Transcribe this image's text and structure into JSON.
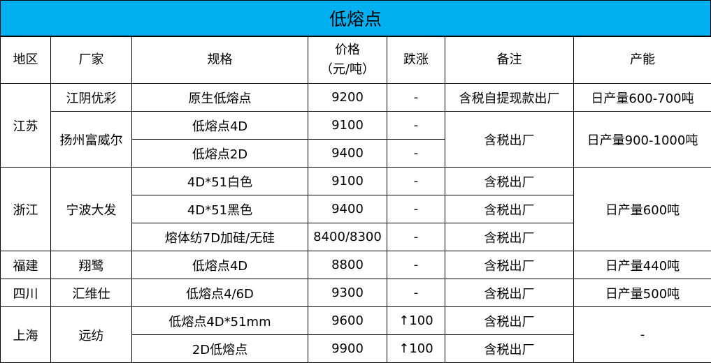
{
  "title": "低熔点",
  "headers": {
    "region": "地区",
    "maker": "厂家",
    "spec": "规格",
    "price_line1": "价格",
    "price_line2": "（元/吨）",
    "change": "跌涨",
    "note": "备注",
    "capacity": "产能"
  },
  "rows": [
    {
      "region": "江苏",
      "maker": "江阴优彩",
      "spec": "原生低熔点",
      "price": "9200",
      "change": "-",
      "note": "含税自提现款出厂",
      "capacity": "日产量600-700吨"
    },
    {
      "maker": "扬州富威尔",
      "spec": "低熔点4D",
      "price": "9100",
      "change": "-",
      "note": "含税出厂",
      "capacity": "日产量900-1000吨"
    },
    {
      "spec": "低熔点2D",
      "price": "9400",
      "change": "-"
    },
    {
      "region": "浙江",
      "maker": "宁波大发",
      "spec": "4D*51白色",
      "price": "9100",
      "change": "-",
      "note": "含税出厂",
      "capacity": "日产量600吨"
    },
    {
      "spec": "4D*51黑色",
      "price": "9400",
      "change": "-",
      "note": "含税出厂"
    },
    {
      "spec": "熔体纺7D加硅/无硅",
      "price": "8400/8300",
      "change": "-",
      "note": "含税出厂"
    },
    {
      "region": "福建",
      "maker": "翔鹭",
      "spec": "低熔点4D",
      "price": "8800",
      "change": "-",
      "note": "含税出厂",
      "capacity": "日产量440吨"
    },
    {
      "region": "四川",
      "maker": "汇维仕",
      "spec": "低熔点4/6D",
      "price": "9300",
      "change": "-",
      "note": "含税出厂",
      "capacity": "日产量500吨"
    },
    {
      "region": "上海",
      "maker": "远纺",
      "spec": "低熔点4D*51mm",
      "price": "9600",
      "change": "↑100",
      "note": "含税出厂",
      "capacity": "-"
    },
    {
      "spec": "2D低熔点",
      "price": "9900",
      "change": "↑100",
      "note": "含税出厂"
    }
  ]
}
